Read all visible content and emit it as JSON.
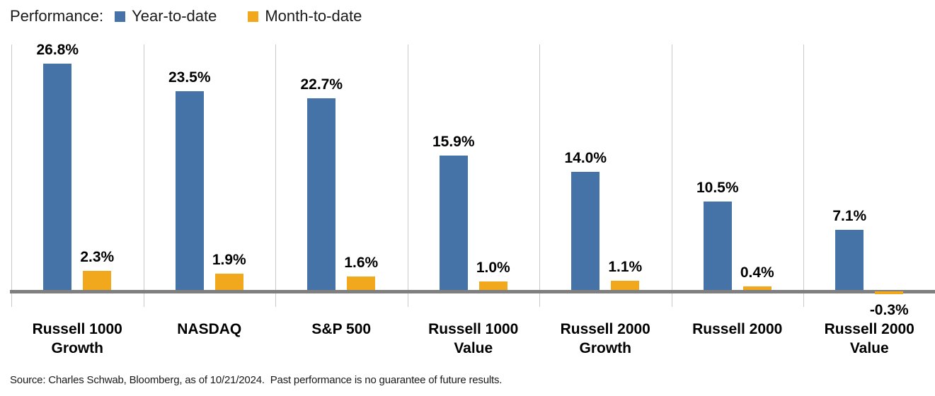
{
  "legend": {
    "title": "Performance:",
    "items": [
      {
        "label": "Year-to-date",
        "color": "#4573A8"
      },
      {
        "label": "Month-to-date",
        "color": "#F2A81C"
      }
    ]
  },
  "chart_data": {
    "type": "bar",
    "title": "Performance: Year-to-date vs Month-to-date",
    "categories": [
      "Russell 1000 Growth",
      "NASDAQ",
      "S&P 500",
      "Russell 1000 Value",
      "Russell 2000 Growth",
      "Russell 2000",
      "Russell 2000 Value"
    ],
    "series": [
      {
        "name": "Year-to-date",
        "color": "#4573A8",
        "values": [
          26.8,
          23.5,
          22.7,
          15.9,
          14.0,
          10.5,
          7.1
        ],
        "labels": [
          "26.8%",
          "23.5%",
          "22.7%",
          "15.9%",
          "14.0%",
          "10.5%",
          "7.1%"
        ]
      },
      {
        "name": "Month-to-date",
        "color": "#F2A81C",
        "values": [
          2.3,
          1.9,
          1.6,
          1.0,
          1.1,
          0.4,
          -0.3
        ],
        "labels": [
          "2.3%",
          "1.9%",
          "1.6%",
          "1.0%",
          "1.1%",
          "0.4%",
          "-0.3%"
        ]
      }
    ],
    "xlabel": "",
    "ylabel": "",
    "ylim": [
      -1,
      29
    ],
    "grid": "vertical category separators only",
    "legend_position": "top-left",
    "value_labels_shown": true,
    "axis_line_color": "#7f7f7f",
    "gridline_color": "#c9c9c9"
  },
  "footer": {
    "source": "Source: Charles Schwab, Bloomberg, as of 10/21/2024.  Past performance is no guarantee of future results."
  }
}
